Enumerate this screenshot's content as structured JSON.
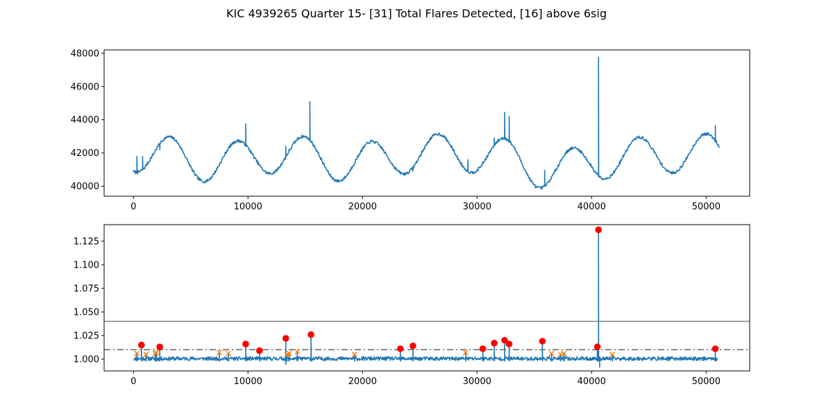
{
  "title": "KIC 4939265 Quarter 15- [31] Total Flares Detected, [16] above 6sig",
  "colors": {
    "series": "#1f77b4",
    "flare_marker": "#ff0000",
    "candidate_marker": "#ff7f0e",
    "threshold_line": "#808080"
  },
  "chart_data": [
    {
      "type": "line",
      "name": "lightcurve",
      "xlim": [
        -2560,
        53800
      ],
      "ylim": [
        39400,
        48200
      ],
      "xticks": [
        0,
        10000,
        20000,
        30000,
        40000,
        50000
      ],
      "yticks": [
        40000,
        42000,
        44000,
        46000,
        48000
      ],
      "baseline": {
        "mean": 42000,
        "amplitude": 1150,
        "period": 5850,
        "phase_peak_x": 3200,
        "trend_dips": [
          [
            7000,
            -600
          ],
          [
            19000,
            -600
          ],
          [
            36500,
            -1050
          ],
          [
            42500,
            -250
          ]
        ]
      },
      "spikes": [
        {
          "x": 300,
          "y": 41800
        },
        {
          "x": 800,
          "y": 41800
        },
        {
          "x": 2300,
          "y": 42200
        },
        {
          "x": 9800,
          "y": 43750
        },
        {
          "x": 13300,
          "y": 42400
        },
        {
          "x": 15400,
          "y": 45100
        },
        {
          "x": 24400,
          "y": 40900
        },
        {
          "x": 29200,
          "y": 41600
        },
        {
          "x": 31500,
          "y": 42900
        },
        {
          "x": 32400,
          "y": 44450
        },
        {
          "x": 32800,
          "y": 44200
        },
        {
          "x": 35900,
          "y": 40950
        },
        {
          "x": 40600,
          "y": 47750
        },
        {
          "x": 50800,
          "y": 43650
        }
      ],
      "x_end": 51200
    },
    {
      "type": "line",
      "name": "normalized",
      "xlim": [
        -2560,
        53800
      ],
      "ylim": [
        0.9875,
        1.1425
      ],
      "xticks": [
        0,
        10000,
        20000,
        30000,
        40000,
        50000
      ],
      "yticks": [
        1.0,
        1.025,
        1.05,
        1.075,
        1.1,
        1.125
      ],
      "ytick_labels": [
        "1.000",
        "1.025",
        "1.050",
        "1.075",
        "1.100",
        "1.125"
      ],
      "hline_solid": 1.04,
      "hline_dashdot": 1.01,
      "flares_6sig": [
        {
          "x": 700,
          "y": 1.015
        },
        {
          "x": 2300,
          "y": 1.013
        },
        {
          "x": 9800,
          "y": 1.016
        },
        {
          "x": 11000,
          "y": 1.009
        },
        {
          "x": 13300,
          "y": 1.022
        },
        {
          "x": 15500,
          "y": 1.026
        },
        {
          "x": 23300,
          "y": 1.011
        },
        {
          "x": 24400,
          "y": 1.014
        },
        {
          "x": 30500,
          "y": 1.011
        },
        {
          "x": 31500,
          "y": 1.017
        },
        {
          "x": 32400,
          "y": 1.02
        },
        {
          "x": 32800,
          "y": 1.016
        },
        {
          "x": 35700,
          "y": 1.019
        },
        {
          "x": 40600,
          "y": 1.137
        },
        {
          "x": 40500,
          "y": 1.013
        },
        {
          "x": 50800,
          "y": 1.011
        }
      ],
      "flares_other": [
        {
          "x": 300,
          "y": 1.006
        },
        {
          "x": 1100,
          "y": 1.005
        },
        {
          "x": 1900,
          "y": 1.006
        },
        {
          "x": 2000,
          "y": 1.007
        },
        {
          "x": 7500,
          "y": 1.007
        },
        {
          "x": 8300,
          "y": 1.006
        },
        {
          "x": 13400,
          "y": 1.005
        },
        {
          "x": 13600,
          "y": 1.006
        },
        {
          "x": 14300,
          "y": 1.008
        },
        {
          "x": 19300,
          "y": 1.005
        },
        {
          "x": 29000,
          "y": 1.007
        },
        {
          "x": 36500,
          "y": 1.006
        },
        {
          "x": 37300,
          "y": 1.005
        },
        {
          "x": 37600,
          "y": 1.006
        },
        {
          "x": 41800,
          "y": 1.005
        }
      ],
      "x_end": 51000
    }
  ]
}
